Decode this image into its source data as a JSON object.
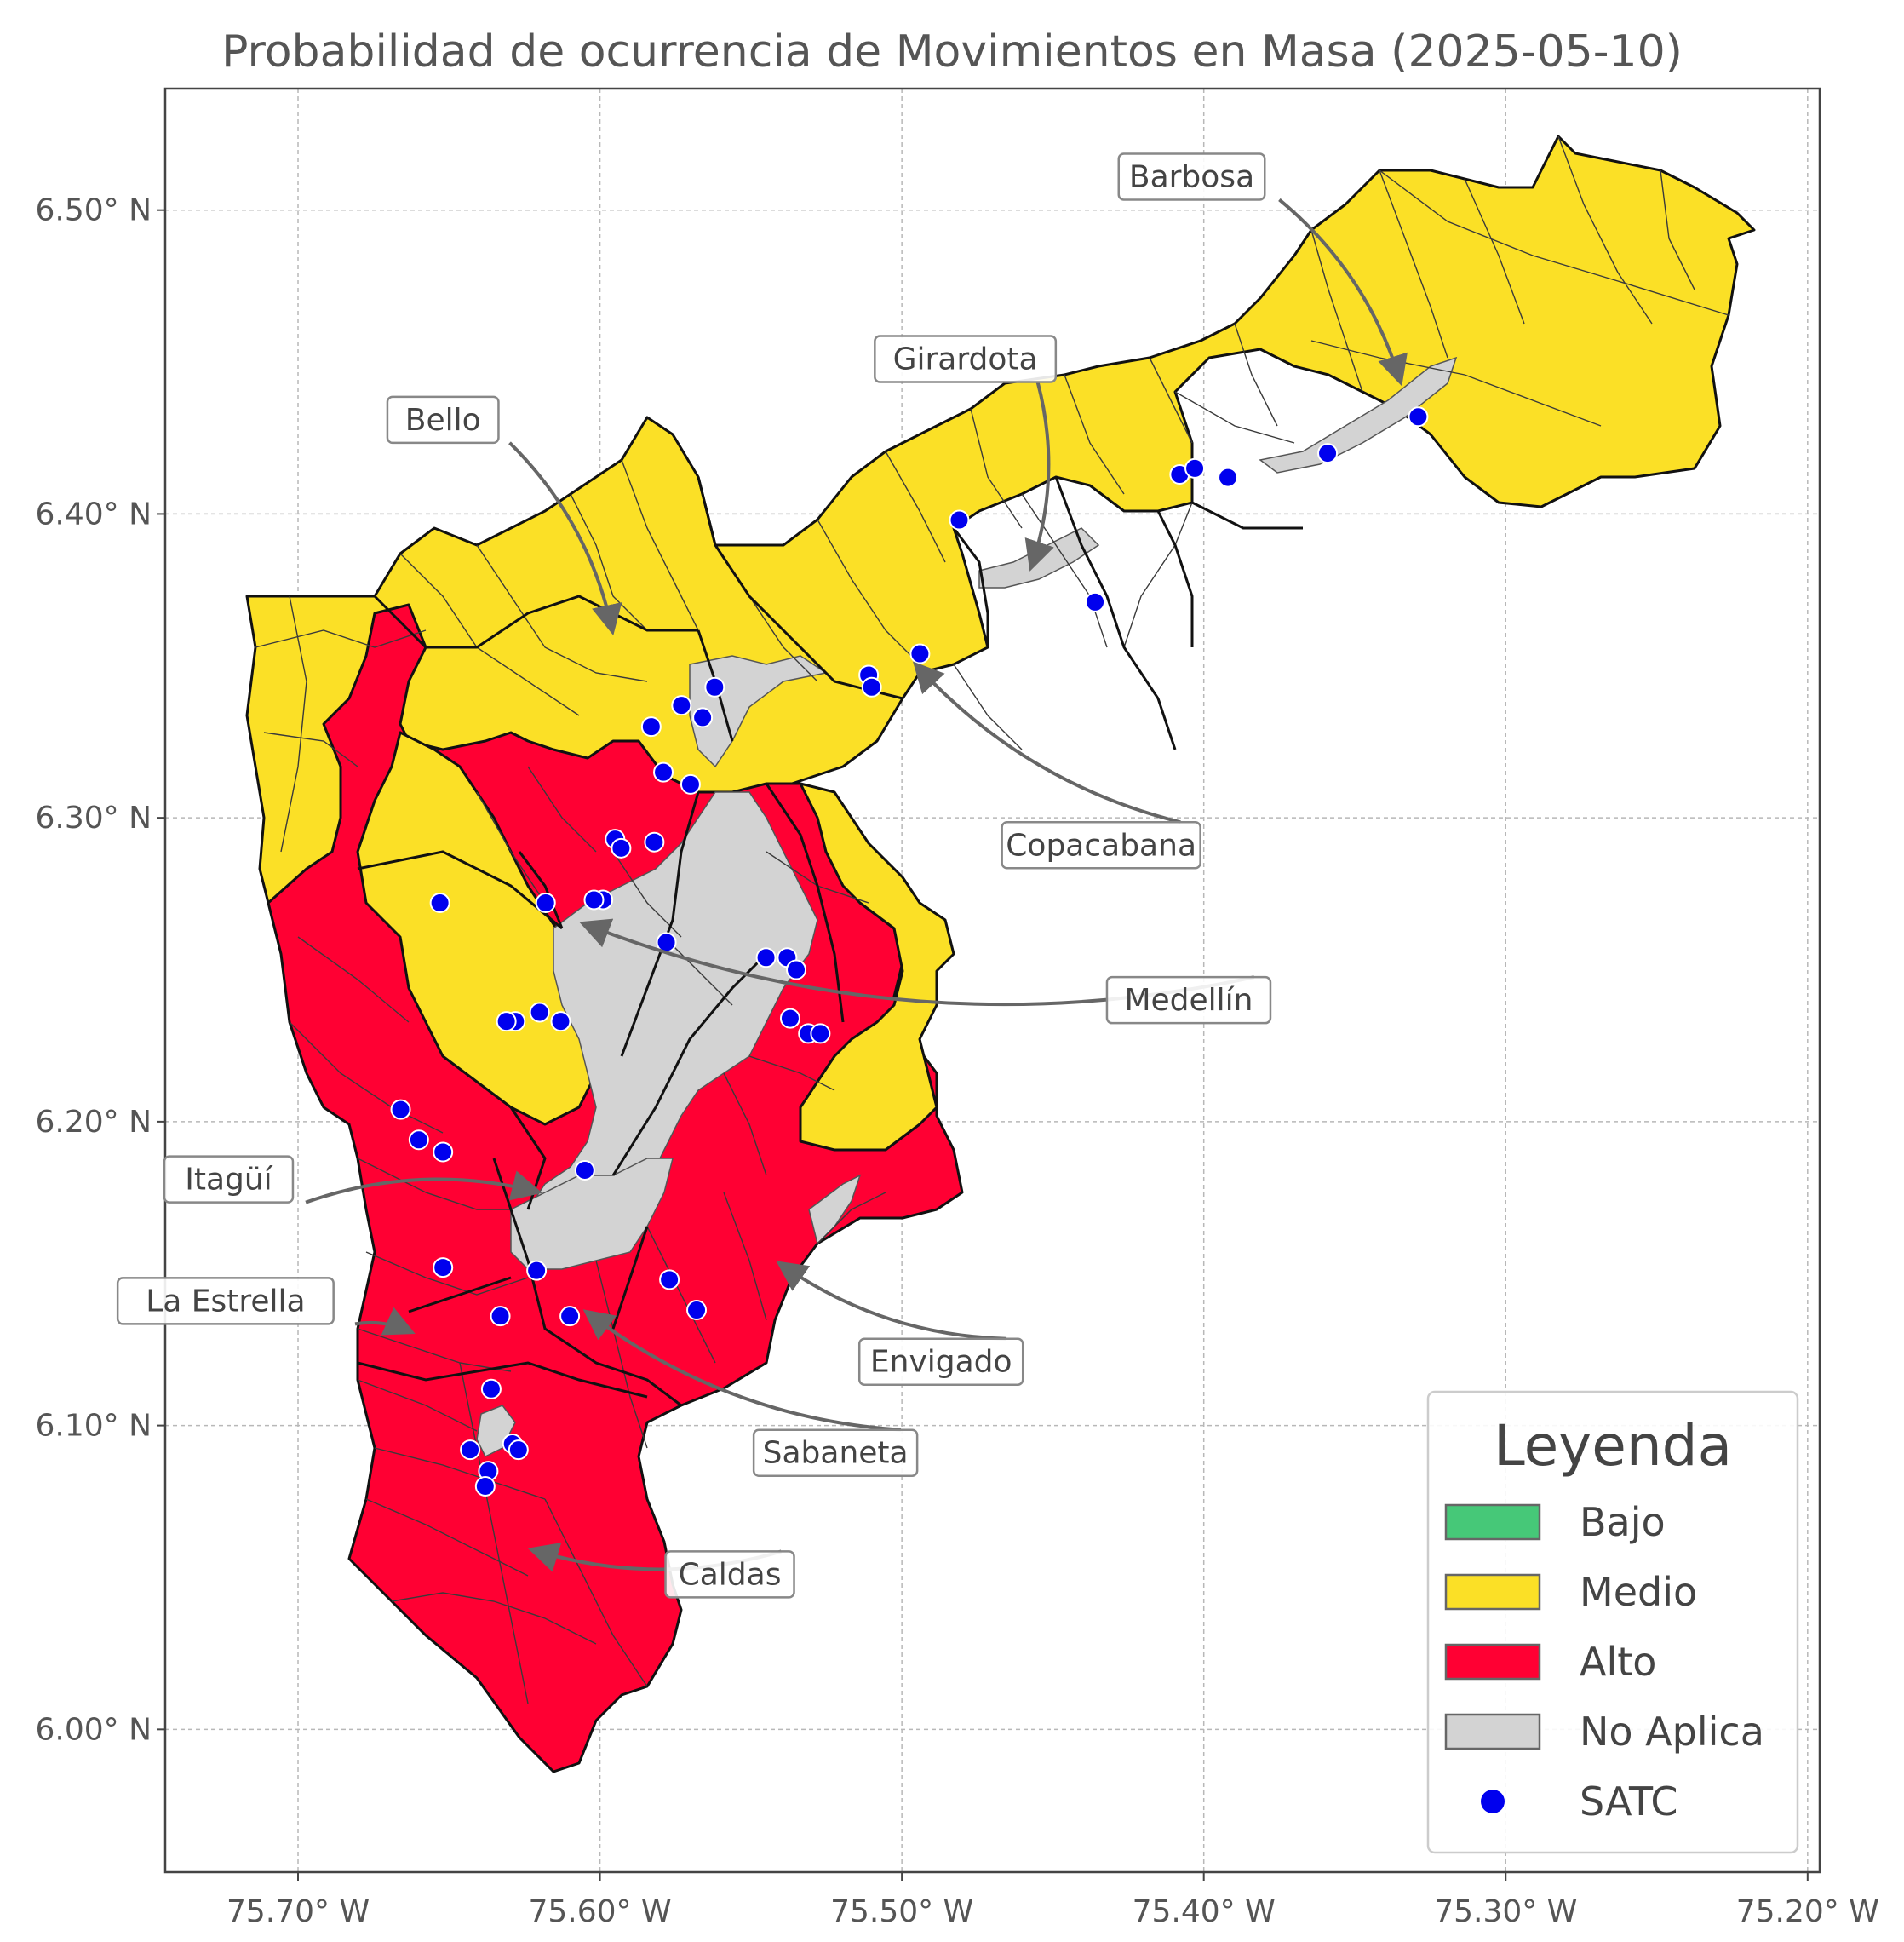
{
  "title": "Probabilidad de ocurrencia de Movimientos en Masa (2025-05-10)",
  "axes": {
    "x_ticks": [
      "75.70° W",
      "75.60° W",
      "75.50° W",
      "75.40° W",
      "75.30° W",
      "75.20° W"
    ],
    "y_ticks": [
      "6.50° N",
      "6.40° N",
      "6.30° N",
      "6.20° N",
      "6.10° N",
      "6.00° N"
    ],
    "x_tick_values": [
      -75.7,
      -75.6,
      -75.5,
      -75.4,
      -75.3,
      -75.2
    ],
    "y_tick_values": [
      6.5,
      6.4,
      6.3,
      6.2,
      6.1,
      6.0
    ],
    "xlim": [
      -75.744,
      -75.196
    ],
    "ylim": [
      5.953,
      6.54
    ],
    "grid": true
  },
  "colors": {
    "bajo": "#46c878",
    "medio": "#fbe026",
    "alto": "#ff0033",
    "no_aplica": "#d3d3d3",
    "satc": "#0000ee"
  },
  "municipios": [
    {
      "name": "Barbosa",
      "nivel": "Medio",
      "label_lon": -75.404,
      "label_lat": 6.511,
      "arrow_lon": -75.335,
      "arrow_lat": 6.444
    },
    {
      "name": "Girardota",
      "nivel": "Medio",
      "label_lon": -75.479,
      "label_lat": 6.451,
      "arrow_lon": -75.457,
      "arrow_lat": 6.383
    },
    {
      "name": "Bello",
      "nivel": "Medio",
      "label_lon": -75.652,
      "label_lat": 6.431,
      "arrow_lon": -75.596,
      "arrow_lat": 6.362
    },
    {
      "name": "Copacabana",
      "nivel": "Medio",
      "label_lon": -75.434,
      "label_lat": 6.291,
      "arrow_lon": -75.495,
      "arrow_lat": 6.35
    },
    {
      "name": "Medellín",
      "nivel": "Alto",
      "label_lon": -75.405,
      "label_lat": 6.24,
      "arrow_lon": -75.605,
      "arrow_lat": 6.265
    },
    {
      "name": "Itagüí",
      "nivel": "Alto",
      "label_lon": -75.723,
      "label_lat": 6.181,
      "arrow_lon": -75.621,
      "arrow_lat": 6.177
    },
    {
      "name": "La Estrella",
      "nivel": "Alto",
      "label_lon": -75.724,
      "label_lat": 6.141,
      "arrow_lon": -75.663,
      "arrow_lat": 6.131
    },
    {
      "name": "Envigado",
      "nivel": "Alto",
      "label_lon": -75.487,
      "label_lat": 6.121,
      "arrow_lon": -75.54,
      "arrow_lat": 6.153
    },
    {
      "name": "Sabaneta",
      "nivel": "Alto",
      "label_lon": -75.522,
      "label_lat": 6.091,
      "arrow_lon": -75.604,
      "arrow_lat": 6.137
    },
    {
      "name": "Caldas",
      "nivel": "Alto",
      "label_lon": -75.557,
      "label_lat": 6.051,
      "arrow_lon": -75.622,
      "arrow_lat": 6.059
    }
  ],
  "satc_points": [
    [
      -75.329,
      6.432
    ],
    [
      -75.359,
      6.42
    ],
    [
      -75.392,
      6.412
    ],
    [
      -75.408,
      6.413
    ],
    [
      -75.403,
      6.415
    ],
    [
      -75.481,
      6.398
    ],
    [
      -75.436,
      6.371
    ],
    [
      -75.494,
      6.354
    ],
    [
      -75.511,
      6.347
    ],
    [
      -75.51,
      6.343
    ],
    [
      -75.562,
      6.343
    ],
    [
      -75.566,
      6.333
    ],
    [
      -75.573,
      6.337
    ],
    [
      -75.583,
      6.33
    ],
    [
      -75.579,
      6.315
    ],
    [
      -75.57,
      6.311
    ],
    [
      -75.582,
      6.292
    ],
    [
      -75.595,
      6.293
    ],
    [
      -75.593,
      6.29
    ],
    [
      -75.599,
      6.273
    ],
    [
      -75.602,
      6.273
    ],
    [
      -75.618,
      6.272
    ],
    [
      -75.578,
      6.259
    ],
    [
      -75.653,
      6.272
    ],
    [
      -75.545,
      6.254
    ],
    [
      -75.538,
      6.254
    ],
    [
      -75.535,
      6.25
    ],
    [
      -75.537,
      6.234
    ],
    [
      -75.531,
      6.229
    ],
    [
      -75.527,
      6.229
    ],
    [
      -75.62,
      6.236
    ],
    [
      -75.628,
      6.233
    ],
    [
      -75.613,
      6.233
    ],
    [
      -75.631,
      6.233
    ],
    [
      -75.666,
      6.204
    ],
    [
      -75.66,
      6.194
    ],
    [
      -75.652,
      6.19
    ],
    [
      -75.605,
      6.184
    ],
    [
      -75.652,
      6.152
    ],
    [
      -75.621,
      6.151
    ],
    [
      -75.577,
      6.148
    ],
    [
      -75.633,
      6.136
    ],
    [
      -75.61,
      6.136
    ],
    [
      -75.568,
      6.138
    ],
    [
      -75.636,
      6.112
    ],
    [
      -75.643,
      6.092
    ],
    [
      -75.629,
      6.094
    ],
    [
      -75.627,
      6.092
    ],
    [
      -75.637,
      6.085
    ],
    [
      -75.638,
      6.08
    ]
  ],
  "legend": {
    "title": "Leyenda",
    "items": [
      {
        "label": "Bajo",
        "color": "#46c878",
        "type": "patch"
      },
      {
        "label": "Medio",
        "color": "#fbe026",
        "type": "patch"
      },
      {
        "label": "Alto",
        "color": "#ff0033",
        "type": "patch"
      },
      {
        "label": "No Aplica",
        "color": "#d3d3d3",
        "type": "patch"
      },
      {
        "label": "SATC",
        "color": "#0000ee",
        "type": "marker"
      }
    ]
  }
}
